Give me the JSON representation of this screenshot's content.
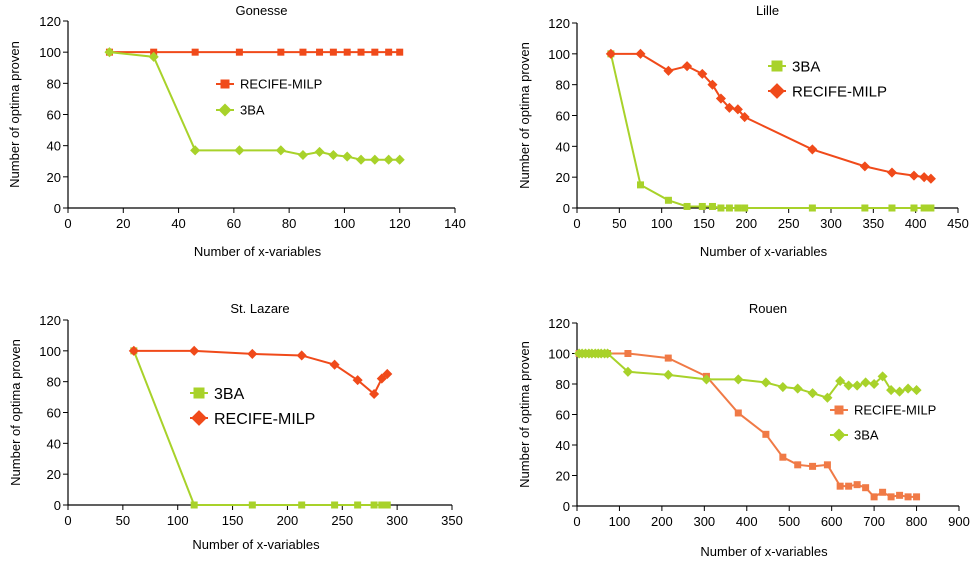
{
  "colors": {
    "recife": "#f04a1a",
    "recife_rouen": "#f07a46",
    "ba3": "#a8d22a",
    "axis": "#000000"
  },
  "chart_data": [
    {
      "type": "line",
      "title": "Gonesse",
      "xlabel": "Number of  x-variables",
      "ylabel": "Number of optima proven",
      "xlim": [
        0,
        140
      ],
      "ylim": [
        0,
        120
      ],
      "xticks": [
        0,
        20,
        40,
        60,
        80,
        100,
        120,
        140
      ],
      "yticks": [
        0,
        20,
        40,
        60,
        80,
        100,
        120
      ],
      "legend": "center",
      "series": [
        {
          "name": "RECIFE-MILP",
          "color": "#f04a1a",
          "marker": "square",
          "x": [
            15,
            31,
            46,
            62,
            77,
            85,
            91,
            96,
            101,
            106,
            111,
            116,
            120
          ],
          "y": [
            100,
            100,
            100,
            100,
            100,
            100,
            100,
            100,
            100,
            100,
            100,
            100,
            100
          ]
        },
        {
          "name": "3BA",
          "color": "#a8d22a",
          "marker": "diamond",
          "x": [
            15,
            31,
            46,
            62,
            77,
            85,
            91,
            96,
            101,
            106,
            111,
            116,
            120
          ],
          "y": [
            100,
            97,
            37,
            37,
            37,
            34,
            36,
            34,
            33,
            31,
            31,
            31,
            31
          ]
        }
      ]
    },
    {
      "type": "line",
      "title": "Lille",
      "xlabel": "Number of x-variables",
      "ylabel": "Number of optima proven",
      "xlim": [
        0,
        450
      ],
      "ylim": [
        0,
        120
      ],
      "xticks": [
        0,
        50,
        100,
        150,
        200,
        250,
        300,
        350,
        400,
        450
      ],
      "yticks": [
        0,
        20,
        40,
        60,
        80,
        100,
        120
      ],
      "legend": "top-right",
      "series": [
        {
          "name": "3BA",
          "color": "#a8d22a",
          "marker": "square",
          "x": [
            40,
            75,
            108,
            130,
            148,
            160,
            170,
            180,
            190,
            198,
            278,
            340,
            372,
            398,
            410,
            418
          ],
          "y": [
            100,
            15,
            5,
            1,
            1,
            1,
            0,
            0,
            0,
            0,
            0,
            0,
            0,
            0,
            0,
            0
          ]
        },
        {
          "name": "RECIFE-MILP",
          "color": "#f04a1a",
          "marker": "diamond",
          "x": [
            40,
            75,
            108,
            130,
            148,
            160,
            170,
            180,
            190,
            198,
            278,
            340,
            372,
            398,
            410,
            418
          ],
          "y": [
            100,
            100,
            89,
            92,
            87,
            80,
            71,
            65,
            64,
            59,
            38,
            27,
            23,
            21,
            20,
            19
          ]
        }
      ]
    },
    {
      "type": "line",
      "title": "St. Lazare",
      "xlabel": "Number of x-variables",
      "ylabel": "Number of optima proven",
      "xlim": [
        0,
        350
      ],
      "ylim": [
        0,
        120
      ],
      "xticks": [
        0,
        50,
        100,
        150,
        200,
        250,
        300,
        350
      ],
      "yticks": [
        0,
        20,
        40,
        60,
        80,
        100,
        120
      ],
      "legend": "center",
      "series": [
        {
          "name": "3BA",
          "color": "#a8d22a",
          "marker": "square",
          "x": [
            60,
            115,
            168,
            213,
            243,
            264,
            279,
            286,
            291
          ],
          "y": [
            100,
            0,
            0,
            0,
            0,
            0,
            0,
            0,
            0
          ]
        },
        {
          "name": "RECIFE-MILP",
          "color": "#f04a1a",
          "marker": "diamond",
          "x": [
            60,
            115,
            168,
            213,
            243,
            264,
            279,
            286,
            291
          ],
          "y": [
            100,
            100,
            98,
            97,
            91,
            81,
            72,
            82,
            85
          ]
        }
      ]
    },
    {
      "type": "line",
      "title": "Rouen",
      "xlabel": "Number of  x-variables",
      "ylabel": "Number of optima proven",
      "xlim": [
        0,
        900
      ],
      "ylim": [
        0,
        120
      ],
      "xticks": [
        0,
        100,
        200,
        300,
        400,
        500,
        600,
        700,
        800,
        900
      ],
      "yticks": [
        0,
        20,
        40,
        60,
        80,
        100,
        120
      ],
      "legend": "right",
      "series": [
        {
          "name": "RECIFE-MILP",
          "color": "#f07a46",
          "marker": "square",
          "x": [
            5,
            12,
            20,
            28,
            35,
            43,
            50,
            57,
            65,
            72,
            120,
            215,
            305,
            380,
            445,
            485,
            520,
            555,
            590,
            620,
            640,
            660,
            680,
            700,
            720,
            740,
            760,
            780,
            800
          ],
          "y": [
            100,
            100,
            100,
            100,
            100,
            100,
            100,
            100,
            100,
            100,
            100,
            97,
            85,
            61,
            47,
            32,
            27,
            26,
            27,
            13,
            13,
            14,
            12,
            6,
            9,
            6,
            7,
            6,
            6
          ]
        },
        {
          "name": "3BA",
          "color": "#a8d22a",
          "marker": "diamond",
          "x": [
            5,
            12,
            20,
            28,
            35,
            43,
            50,
            57,
            65,
            72,
            120,
            215,
            305,
            380,
            445,
            485,
            520,
            555,
            590,
            620,
            640,
            660,
            680,
            700,
            720,
            740,
            760,
            780,
            800
          ],
          "y": [
            100,
            100,
            100,
            100,
            100,
            100,
            100,
            100,
            100,
            100,
            88,
            86,
            83,
            83,
            81,
            78,
            77,
            74,
            71,
            82,
            79,
            79,
            81,
            80,
            85,
            76,
            75,
            77,
            76
          ]
        }
      ]
    }
  ]
}
